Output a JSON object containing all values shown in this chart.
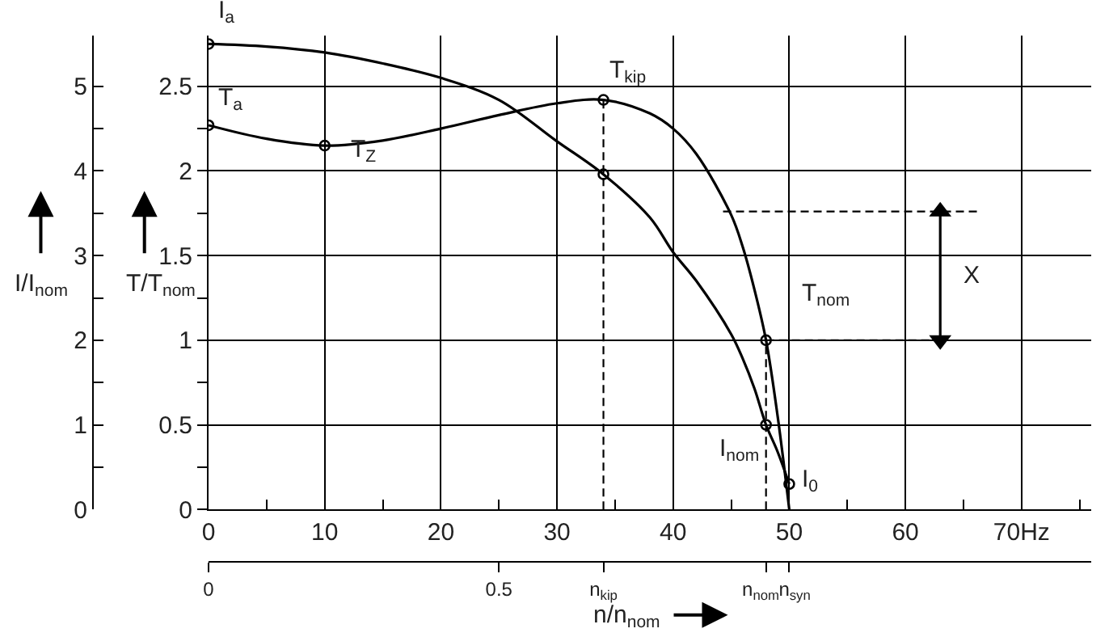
{
  "chart_data": {
    "type": "line",
    "xlabel": "n/n$_{nom}$",
    "ylabel": "I/I$_{nom}$",
    "y2label": "T/T$_{nom}$",
    "xlim": [
      0,
      76
    ],
    "xticks": [
      0,
      {
        "value": 5,
        "label": null
      },
      10,
      {
        "value": 15,
        "label": null
      },
      20,
      {
        "value": 25,
        "label": null
      },
      30,
      {
        "value": 35,
        "label": null
      },
      40,
      {
        "value": 45,
        "label": null
      },
      50,
      {
        "value": 55,
        "label": null
      },
      60,
      {
        "value": 65,
        "label": null
      },
      {
        "value": 70,
        "label": "70Hz"
      },
      {
        "value": 75,
        "label": null
      }
    ],
    "x2lim": [
      0,
      1.52
    ],
    "x2ticks": [
      0,
      0.5,
      {
        "value": 0.68,
        "label": "n$_{kip}$"
      },
      {
        "value": 0.96,
        "label": "n$_{nom}$"
      },
      {
        "value": 1.0,
        "label": "n$_{syn}$"
      }
    ],
    "ylim": [
      0,
      5.6
    ],
    "yticks": [
      0,
      {
        "value": 0.5,
        "label": null
      },
      1,
      {
        "value": 1.5,
        "label": null
      },
      2,
      {
        "value": 2.5,
        "label": null
      },
      3,
      {
        "value": 3.5,
        "label": null
      },
      4,
      {
        "value": 4.5,
        "label": null
      },
      5
    ],
    "y2lim": [
      0,
      2.8
    ],
    "y2ticks": [
      0,
      {
        "value": 0.25,
        "label": null
      },
      0.5,
      {
        "value": 0.75,
        "label": null
      },
      1,
      {
        "value": 1.25,
        "label": null
      },
      1.5,
      {
        "value": 1.75,
        "label": null
      },
      2,
      {
        "value": 2.25,
        "label": null
      },
      2.5
    ],
    "grid": true,
    "line_style": "solid",
    "series": [
      {
        "axis": "y",
        "color": "#000000",
        "x": [
          0,
          5,
          10,
          15,
          20,
          25,
          30,
          34,
          38,
          40,
          42,
          45,
          46,
          47,
          48,
          49,
          50
        ],
        "values": [
          5.5,
          5.47,
          5.4,
          5.27,
          5.1,
          4.84,
          4.35,
          3.96,
          3.45,
          3.04,
          2.7,
          2.07,
          1.78,
          1.43,
          1.0,
          0.68,
          0.3
        ]
      },
      {
        "axis": "y2",
        "color": "#000000",
        "x": [
          0,
          5,
          10,
          15,
          20,
          25,
          30,
          34,
          38,
          40,
          42,
          45,
          46,
          47,
          48,
          49,
          50
        ],
        "values": [
          2.27,
          2.19,
          2.15,
          2.18,
          2.25,
          2.33,
          2.4,
          2.42,
          2.34,
          2.25,
          2.1,
          1.74,
          1.55,
          1.3,
          1.0,
          0.55,
          0
        ]
      },
      {
        "type": "scatter",
        "axis": "y",
        "color": "#000000",
        "marker": "circle",
        "x": [
          0,
          34,
          48,
          50
        ],
        "values": [
          5.5,
          3.96,
          1.0,
          0.3
        ]
      },
      {
        "type": "scatter",
        "axis": "y2",
        "color": "#000000",
        "marker": "circle",
        "x": [
          0,
          10,
          34,
          48
        ],
        "values": [
          2.27,
          2.15,
          2.42,
          1.0
        ]
      },
      {
        "type": "line",
        "axis": "y2",
        "color": "#000000",
        "line_style": "dashed",
        "x": [
          34,
          34
        ],
        "values": [
          0,
          2.42
        ]
      },
      {
        "type": "line",
        "axis": "y2",
        "color": "#000000",
        "line_style": "dashed",
        "x": [
          48,
          48
        ],
        "values": [
          0,
          1.0
        ]
      },
      {
        "type": "line",
        "axis": "y2",
        "color": "#000000",
        "line_style": "dashed",
        "x": [
          48,
          63
        ],
        "values": [
          1.0,
          1.0
        ]
      },
      {
        "type": "line",
        "axis": "y2",
        "color": "#000000",
        "line_style": "dashed",
        "x": [
          44.3,
          66.5
        ],
        "values": [
          1.76,
          1.76
        ]
      },
      {
        "type": "line",
        "axis": "y2",
        "color": "#000000",
        "marker": "triangle",
        "x": [
          63,
          63
        ],
        "values": [
          1.0,
          1.76
        ]
      }
    ],
    "annotations": [
      {
        "text": "I$_{a}$",
        "x": 0,
        "y": 5.5
      },
      {
        "text": "T$_{a}$",
        "x": 0,
        "y": 4.54
      },
      {
        "text": "T$_{Z}$",
        "x": 10,
        "y": 4.3
      },
      {
        "text": "T$_{kip}$",
        "x": 34,
        "y": 4.84
      },
      {
        "text": "T$_{nom}$",
        "x": 48,
        "y": 2.0
      },
      {
        "text": "I$_{nom}$",
        "x": 48,
        "y": 1.0
      },
      {
        "text": "I$_{0}$",
        "x": 50,
        "y": 0.3
      },
      {
        "text": "X",
        "x": 63,
        "y": 2.76
      }
    ]
  }
}
